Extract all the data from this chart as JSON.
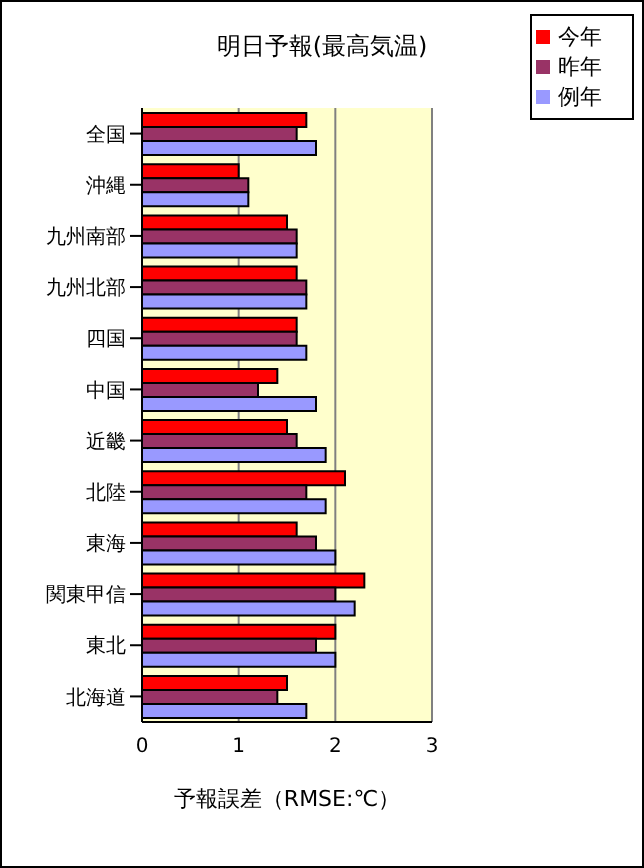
{
  "chart_data": {
    "type": "bar",
    "orientation": "horizontal",
    "title": "明日予報(最高気温)",
    "xlabel": "予報誤差（RMSE:℃）",
    "categories": [
      "全国",
      "沖縄",
      "九州南部",
      "九州北部",
      "四国",
      "中国",
      "近畿",
      "北陸",
      "東海",
      "関東甲信",
      "東北",
      "北海道"
    ],
    "series": [
      {
        "name": "今年",
        "color": "#ff0000",
        "values": [
          1.7,
          1.0,
          1.5,
          1.6,
          1.6,
          1.4,
          1.5,
          2.1,
          1.6,
          2.3,
          2.0,
          1.5
        ]
      },
      {
        "name": "昨年",
        "color": "#993366",
        "values": [
          1.6,
          1.1,
          1.6,
          1.7,
          1.6,
          1.2,
          1.6,
          1.7,
          1.8,
          2.0,
          1.8,
          1.4
        ]
      },
      {
        "name": "例年",
        "color": "#9999ff",
        "values": [
          1.8,
          1.1,
          1.6,
          1.7,
          1.7,
          1.8,
          1.9,
          1.9,
          2.0,
          2.2,
          2.0,
          1.7
        ]
      }
    ],
    "xlim": [
      0,
      3
    ],
    "xticks": [
      0,
      1,
      2,
      3
    ],
    "grid": "x",
    "legend": "top right"
  }
}
